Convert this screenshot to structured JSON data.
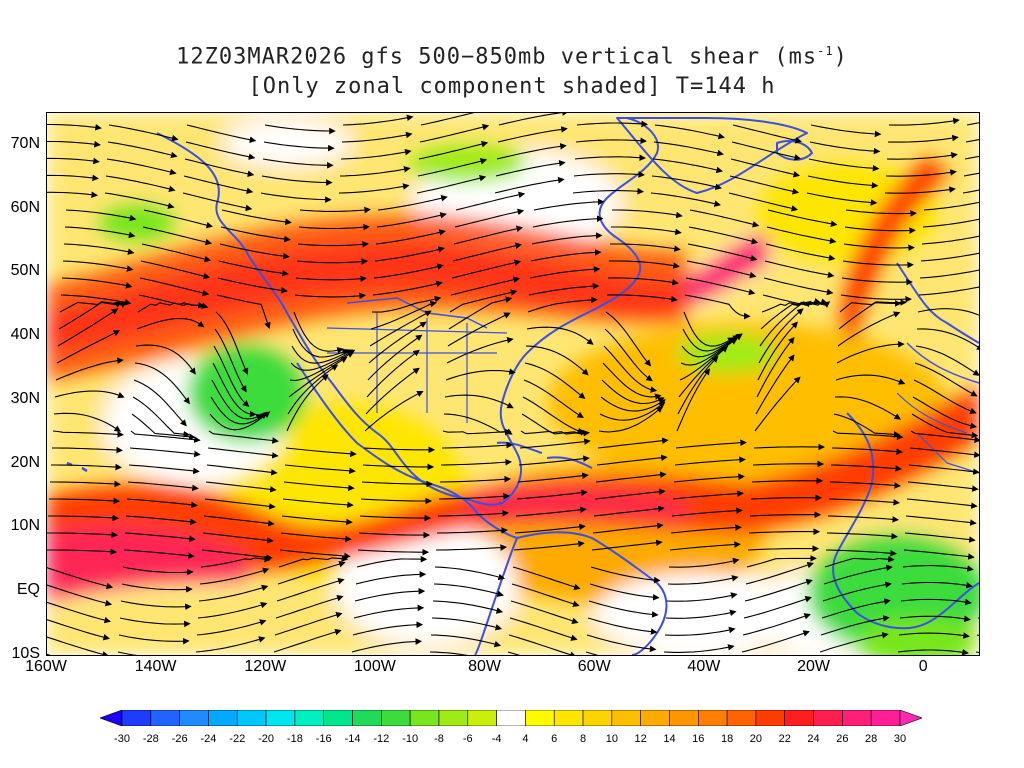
{
  "title": {
    "line1_prefix": "12Z03MAR2026 gfs 500−850mb vertical shear (ms",
    "line1_sup": "-1",
    "line1_suffix": ")",
    "line2": "[Only zonal component shaded] T=144 h"
  },
  "map": {
    "lon_range": [
      -160,
      10
    ],
    "lat_range": [
      -10,
      75
    ],
    "lat_labels": [
      "70N",
      "60N",
      "50N",
      "40N",
      "30N",
      "20N",
      "10N",
      "EQ",
      "10S"
    ],
    "lat_values": [
      70,
      60,
      50,
      40,
      30,
      20,
      10,
      0,
      -10
    ],
    "lon_labels": [
      "160W",
      "140W",
      "120W",
      "100W",
      "80W",
      "60W",
      "40W",
      "20W",
      "0"
    ],
    "lon_values": [
      -160,
      -140,
      -120,
      -100,
      -80,
      -60,
      -40,
      -20,
      0
    ],
    "coastline_color": "#3a4ee8",
    "streamline_color": "#000000"
  },
  "colorbar": {
    "labels": [
      "-30",
      "-28",
      "-26",
      "-24",
      "-22",
      "-20",
      "-18",
      "-16",
      "-14",
      "-12",
      "-10",
      "-8",
      "-6",
      "-4",
      "4",
      "6",
      "8",
      "10",
      "12",
      "14",
      "16",
      "18",
      "20",
      "22",
      "24",
      "26",
      "28",
      "30"
    ],
    "colors": [
      "#1a00ff",
      "#1e3cff",
      "#1f64ff",
      "#1e8cff",
      "#00aaff",
      "#00c8ff",
      "#00e6f0",
      "#00f0c0",
      "#00e68c",
      "#1edc5a",
      "#3cdc3c",
      "#78e61e",
      "#a0eb14",
      "#c8f00a",
      "#ffffff",
      "#fffa00",
      "#ffe600",
      "#ffd200",
      "#ffbe00",
      "#ffaa00",
      "#ff9600",
      "#ff7d00",
      "#ff6400",
      "#ff3c00",
      "#ff1e1e",
      "#ff1e50",
      "#ff1e78",
      "#ff1e96",
      "#ff28b4"
    ]
  }
}
